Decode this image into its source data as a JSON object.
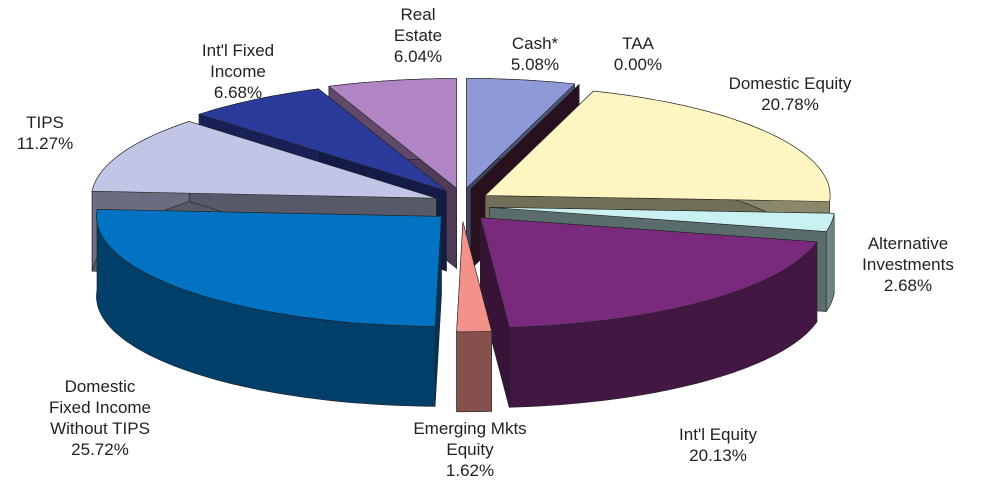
{
  "chart_data": {
    "type": "pie",
    "categories": [
      "Cash*",
      "TAA",
      "Domestic Equity",
      "Alternative\nInvestments",
      "Int'l Equity",
      "Emerging Mkts\nEquity",
      "Domestic\nFixed Income\nWithout TIPS",
      "TIPS",
      "Int'l Fixed\nIncome",
      "Real\nEstate"
    ],
    "values": [
      5.08,
      0.0,
      20.78,
      2.68,
      20.13,
      1.62,
      25.72,
      11.27,
      6.68,
      6.04
    ],
    "value_labels": [
      "5.08%",
      "0.00%",
      "20.78%",
      "2.68%",
      "20.13%",
      "1.62%",
      "25.72%",
      "11.27%",
      "6.68%",
      "6.04%"
    ],
    "colors": [
      "#8e9ad8",
      "#5c2444",
      "#fdf6c2",
      "#c9f1f1",
      "#7a2a7c",
      "#f3928a",
      "#0272c2",
      "#c1c5e6",
      "#2b3b9c",
      "#b184c3"
    ]
  }
}
